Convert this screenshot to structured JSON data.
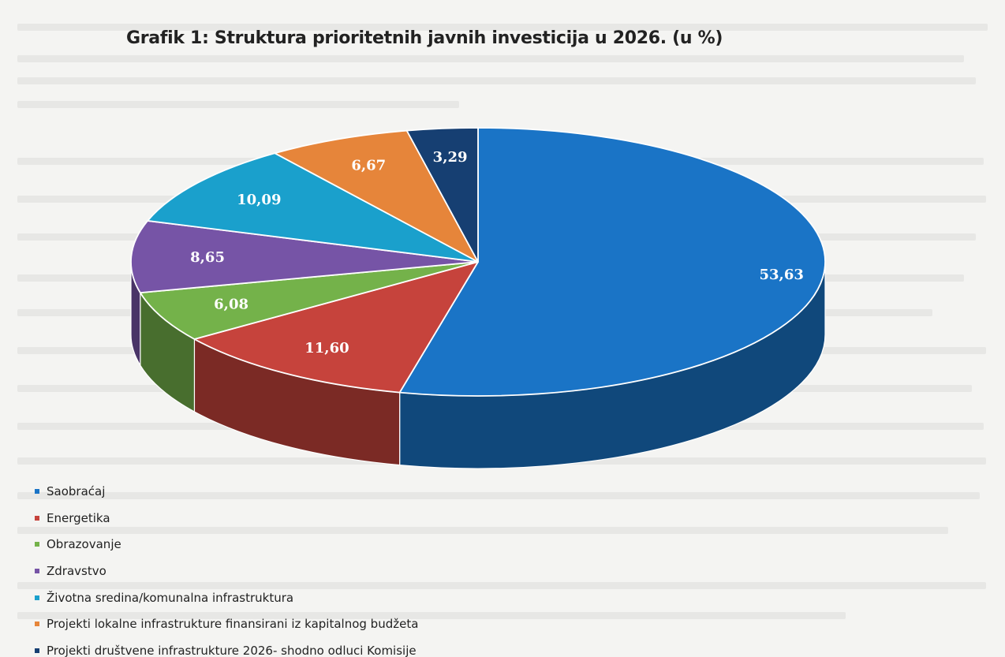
{
  "chart_data": {
    "type": "pie",
    "title": "Grafik 1: Struktura prioritetnih javnih investicija u 2026. (u %)",
    "series": [
      {
        "labels": [
          "Saobraćaj",
          "Energetika",
          "Obrazovanje",
          "Zdravstvo",
          "Životna sredina/komunalna infrastruktura",
          "Projekti lokalne infrastrukture finansirani iz kapitalnog budžeta",
          "Projekti društvene infrastrukture 2026- shodno odluci Komisije"
        ],
        "values": [
          53.63,
          11.6,
          6.08,
          8.65,
          10.09,
          6.67,
          3.29
        ],
        "value_labels": [
          "53,63",
          "11,60",
          "6,08",
          "8,65",
          "10,09",
          "6,67",
          "3,29"
        ],
        "colors": [
          "#1a74c6",
          "#c6433c",
          "#74b24a",
          "#7654a6",
          "#1aa0cc",
          "#e6853a",
          "#163f72"
        ]
      }
    ],
    "legend": "bottom-left",
    "style": "3d"
  }
}
